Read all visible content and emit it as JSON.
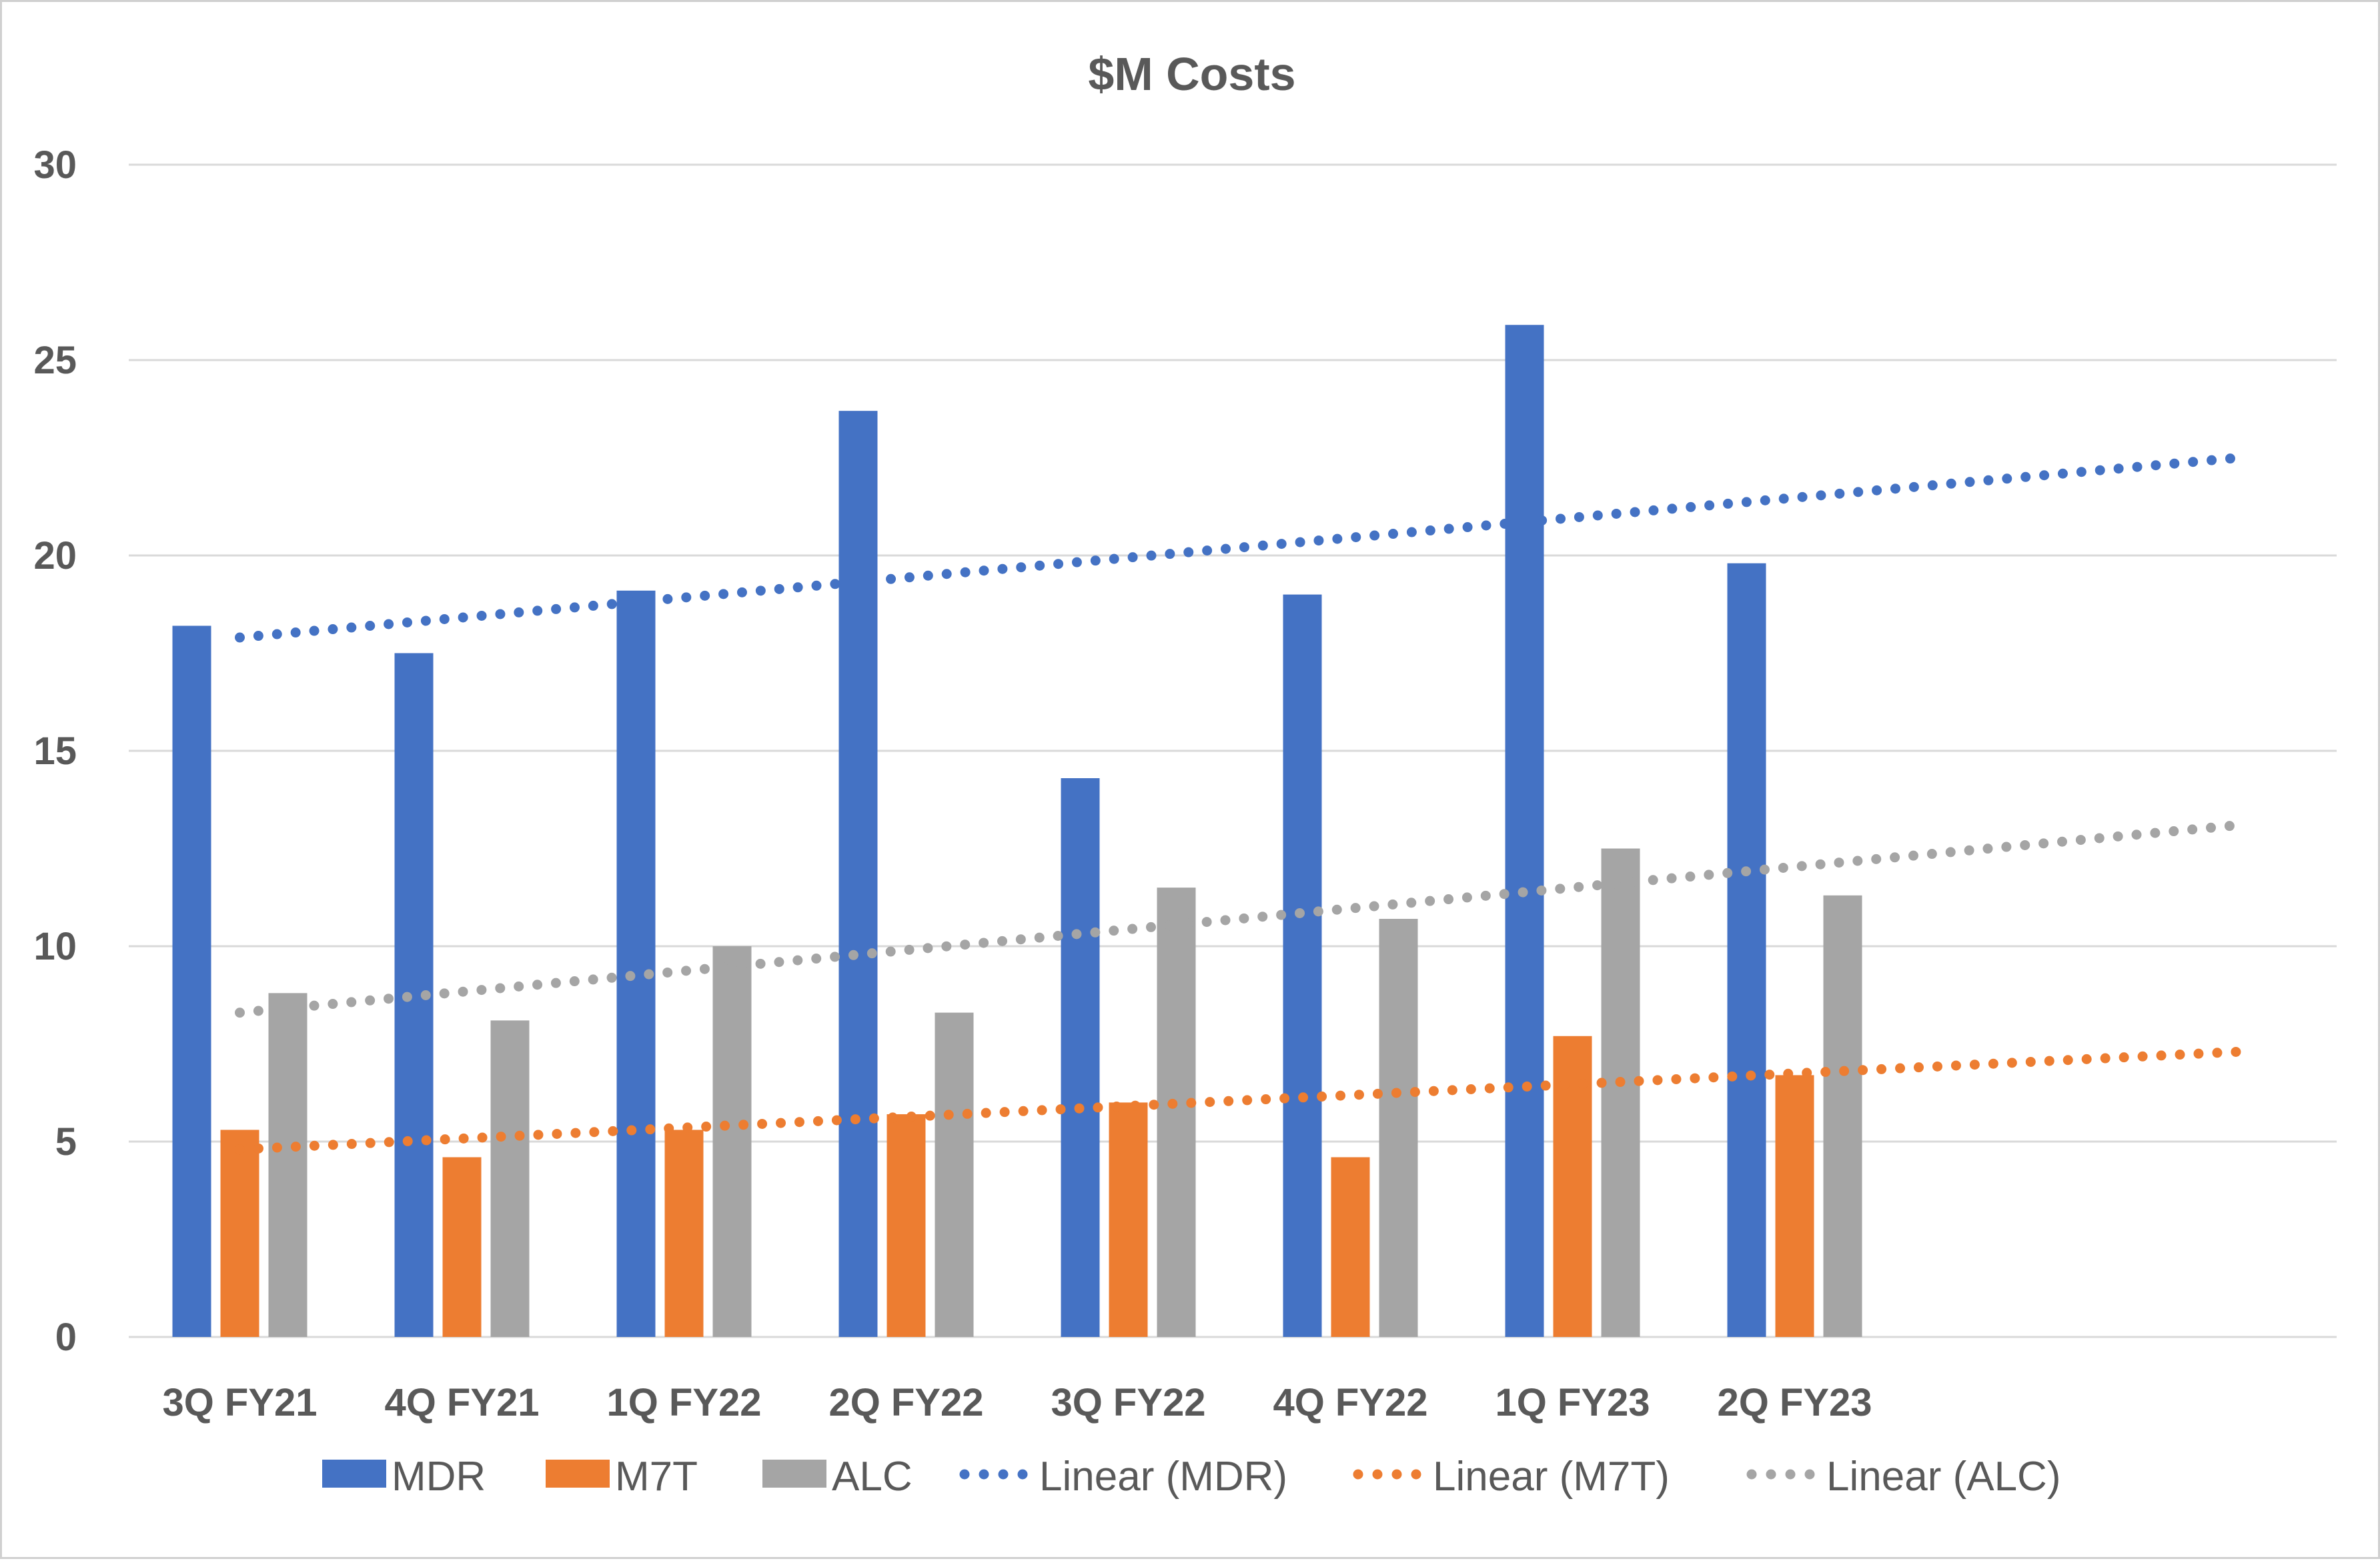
{
  "chart_data": {
    "type": "bar",
    "title": "$M Costs",
    "xlabel": "",
    "ylabel": "",
    "categories": [
      "3Q FY21",
      "4Q FY21",
      "1Q FY22",
      "2Q FY22",
      "3Q FY22",
      "4Q FY22",
      "1Q FY23",
      "2Q FY23"
    ],
    "ylim": [
      0,
      30
    ],
    "yticks": [
      0,
      5,
      10,
      15,
      20,
      25,
      30
    ],
    "grid": true,
    "legend_position": "bottom",
    "series": [
      {
        "name": "MDR",
        "color": "#4472C4",
        "values": [
          18.2,
          17.5,
          19.1,
          23.7,
          14.3,
          19.0,
          25.9,
          19.8
        ]
      },
      {
        "name": "M7T",
        "color": "#ED7D31",
        "values": [
          5.3,
          4.6,
          5.3,
          5.7,
          6.0,
          4.6,
          7.7,
          6.7
        ]
      },
      {
        "name": "ALC",
        "color": "#A5A5A5",
        "values": [
          8.8,
          8.1,
          10.0,
          8.3,
          11.5,
          10.7,
          12.5,
          11.3
        ]
      }
    ],
    "trendlines": [
      {
        "name": "Linear (MDR)",
        "series": "MDR",
        "color": "#4472C4",
        "style": "dotted",
        "start": 17.9,
        "end": 22.5,
        "extends_to_period": 10
      },
      {
        "name": "Linear (M7T)",
        "series": "M7T",
        "color": "#ED7D31",
        "style": "dotted",
        "start": 4.8,
        "end": 7.3,
        "extends_to_period": 10
      },
      {
        "name": "Linear (ALC)",
        "series": "ALC",
        "color": "#A5A5A5",
        "style": "dotted",
        "start": 8.3,
        "end": 13.1,
        "extends_to_period": 10
      }
    ]
  }
}
